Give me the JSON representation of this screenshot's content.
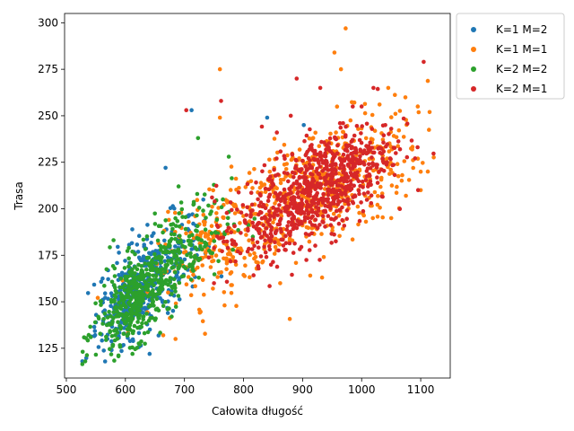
{
  "chart_data": {
    "type": "scatter",
    "title": "",
    "xlabel": "Całowita długość",
    "ylabel": "Trasa",
    "xlim": [
      497,
      1150
    ],
    "ylim": [
      109,
      305
    ],
    "xticks": [
      500,
      600,
      700,
      800,
      900,
      1000,
      1100
    ],
    "yticks": [
      125,
      150,
      175,
      200,
      225,
      250,
      275,
      300
    ],
    "grid": false,
    "legend_position": "outside-top-right",
    "series": [
      {
        "name": "K=1 M=2",
        "color": "#1f77b4",
        "clusters": [
          {
            "cx": 640,
            "cy": 163,
            "sx": 45,
            "sy": 16,
            "n": 300,
            "r": 0.6
          },
          {
            "cx": 600,
            "cy": 145,
            "sx": 25,
            "sy": 12,
            "n": 120,
            "r": 0.5
          }
        ],
        "points": [
          [
            712,
            253
          ],
          [
            840,
            249
          ],
          [
            668,
            222
          ],
          [
            527,
            118
          ],
          [
            641,
            122
          ],
          [
            902,
            245
          ]
        ]
      },
      {
        "name": "K=1 M=1",
        "color": "#ff7f0e",
        "clusters": [
          {
            "cx": 930,
            "cy": 212,
            "sx": 90,
            "sy": 20,
            "n": 480,
            "r": 0.6
          },
          {
            "cx": 760,
            "cy": 180,
            "sx": 55,
            "sy": 16,
            "n": 180,
            "r": 0.5
          }
        ],
        "points": [
          [
            973,
            297
          ],
          [
            954,
            284
          ],
          [
            760,
            275
          ],
          [
            1045,
            265
          ],
          [
            1115,
            252
          ],
          [
            1095,
            255
          ],
          [
            760,
            249
          ],
          [
            965,
            275
          ],
          [
            1112,
            220
          ],
          [
            664,
            132
          ],
          [
            862,
            160
          ],
          [
            933,
            163
          ],
          [
            1050,
            195
          ],
          [
            1100,
            210
          ],
          [
            1075,
            207
          ]
        ]
      },
      {
        "name": "K=2 M=2",
        "color": "#2ca02c",
        "clusters": [
          {
            "cx": 620,
            "cy": 152,
            "sx": 35,
            "sy": 14,
            "n": 420,
            "r": 0.6
          },
          {
            "cx": 690,
            "cy": 178,
            "sx": 45,
            "sy": 14,
            "n": 160,
            "r": 0.5
          }
        ],
        "points": [
          [
            532,
            118
          ],
          [
            690,
            212
          ],
          [
            723,
            238
          ],
          [
            775,
            228
          ],
          [
            782,
            178
          ],
          [
            765,
            205
          ],
          [
            549,
            139
          ],
          [
            555,
            141
          ],
          [
            612,
            122
          ]
        ]
      },
      {
        "name": "K=2 M=1",
        "color": "#d62728",
        "clusters": [
          {
            "cx": 940,
            "cy": 214,
            "sx": 55,
            "sy": 16,
            "n": 620,
            "r": 0.55
          },
          {
            "cx": 840,
            "cy": 195,
            "sx": 45,
            "sy": 14,
            "n": 170,
            "r": 0.5
          }
        ],
        "points": [
          [
            1105,
            279
          ],
          [
            703,
            253
          ],
          [
            762,
            258
          ],
          [
            930,
            265
          ],
          [
            1020,
            265
          ],
          [
            750,
            160
          ],
          [
            1040,
            245
          ],
          [
            1050,
            243
          ],
          [
            1000,
            255
          ],
          [
            870,
            178
          ],
          [
            1065,
            232
          ],
          [
            890,
            270
          ],
          [
            985,
            255
          ],
          [
            880,
            250
          ]
        ]
      }
    ]
  }
}
